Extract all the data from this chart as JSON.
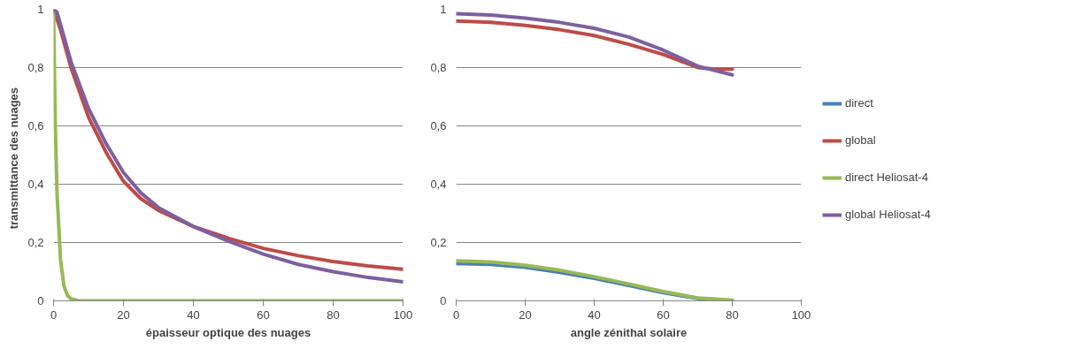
{
  "chart_data": [
    {
      "type": "line",
      "xlabel": "épaisseur optique des nuages",
      "ylabel": "transmittance  des  nuages",
      "xlim": [
        0,
        100
      ],
      "ylim": [
        0,
        1
      ],
      "xticks": [
        0,
        20,
        40,
        60,
        80,
        100
      ],
      "yticks": [
        0,
        {
          "value": 0.2,
          "label": "0,2"
        },
        {
          "value": 0.4,
          "label": "0,4"
        },
        {
          "value": 0.6,
          "label": "0,6"
        },
        {
          "value": 0.8,
          "label": "0,8"
        },
        1
      ],
      "grid": "y",
      "series": [
        {
          "color": "#be4b48",
          "x": [
            0,
            2,
            5,
            10,
            15,
            20,
            25,
            30,
            40,
            50,
            60,
            70,
            80,
            90,
            100
          ],
          "values": [
            1,
            0.93,
            0.8,
            0.63,
            0.51,
            0.41,
            0.35,
            0.31,
            0.255,
            0.215,
            0.18,
            0.155,
            0.135,
            0.12,
            0.108
          ]
        },
        {
          "color": "#98b954",
          "x": [
            0,
            0.5,
            1,
            2,
            3,
            4,
            5,
            7,
            10,
            100
          ],
          "values": [
            1,
            0.6,
            0.37,
            0.14,
            0.05,
            0.018,
            0.007,
            0.001,
            0,
            0
          ]
        },
        {
          "color": "#7d60a0",
          "x": [
            0,
            1,
            5,
            10,
            15,
            20,
            25,
            30,
            40,
            50,
            60,
            70,
            80,
            90,
            100
          ],
          "values": [
            1,
            0.99,
            0.82,
            0.66,
            0.54,
            0.44,
            0.37,
            0.32,
            0.255,
            0.205,
            0.16,
            0.125,
            0.1,
            0.08,
            0.065
          ]
        }
      ]
    },
    {
      "type": "line",
      "xlabel": "angle zénithal solaire",
      "xlim": [
        0,
        100
      ],
      "ylim": [
        0,
        1
      ],
      "xticks": [
        0,
        20,
        40,
        60,
        80,
        100
      ],
      "yticks": [
        0,
        {
          "value": 0.2,
          "label": "0,2"
        },
        {
          "value": 0.4,
          "label": "0,4"
        },
        {
          "value": 0.6,
          "label": "0,6"
        },
        {
          "value": 0.8,
          "label": "0,8"
        },
        1
      ],
      "grid": "y",
      "legend": "right",
      "series": [
        {
          "name": "direct",
          "color": "#4a7ebb",
          "x": [
            0,
            10,
            20,
            30,
            40,
            50,
            60,
            70,
            80
          ],
          "values": [
            0.128,
            0.125,
            0.115,
            0.098,
            0.077,
            0.053,
            0.028,
            0.008,
            0.001
          ]
        },
        {
          "name": "global",
          "color": "#be4b48",
          "x": [
            0,
            10,
            20,
            30,
            40,
            50,
            60,
            70,
            75,
            80
          ],
          "values": [
            0.96,
            0.955,
            0.945,
            0.93,
            0.91,
            0.88,
            0.845,
            0.8,
            0.795,
            0.795
          ]
        },
        {
          "name": "direct Heliosat-4",
          "color": "#98b954",
          "x": [
            0,
            10,
            20,
            30,
            40,
            50,
            60,
            70,
            80
          ],
          "values": [
            0.137,
            0.133,
            0.122,
            0.105,
            0.083,
            0.058,
            0.032,
            0.01,
            0.002
          ]
        },
        {
          "name": "global Heliosat-4",
          "color": "#7d60a0",
          "x": [
            0,
            10,
            20,
            30,
            40,
            50,
            60,
            70,
            80
          ],
          "values": [
            0.985,
            0.98,
            0.97,
            0.955,
            0.935,
            0.905,
            0.86,
            0.805,
            0.775
          ]
        }
      ]
    }
  ]
}
